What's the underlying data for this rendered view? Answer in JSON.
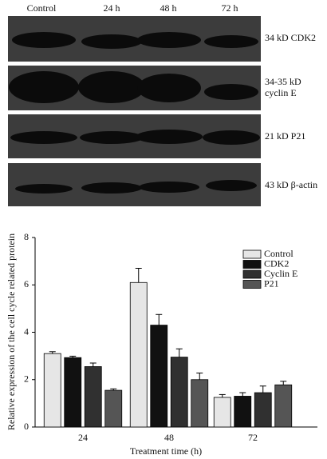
{
  "blot": {
    "lanes": [
      "Control",
      "24 h",
      "48 h",
      "72 h"
    ],
    "bands": [
      [
        "34 kD CDK2"
      ],
      [
        "34-35 kD",
        "cyclin E"
      ],
      [
        "21 kD P21"
      ],
      [
        "43 kD β-actin"
      ]
    ]
  },
  "chart_data": {
    "type": "bar",
    "y_label": "Relative expression of the cell cycle related protein",
    "x_label": "Treatment time (h)",
    "categories": [
      "24",
      "48",
      "72"
    ],
    "series": [
      {
        "name": "Control",
        "color": "#e6e6e6",
        "values": [
          3.1,
          6.1,
          1.25
        ],
        "errors": [
          0.08,
          0.6,
          0.12
        ]
      },
      {
        "name": "CDK2",
        "color": "#111111",
        "values": [
          2.93,
          4.3,
          1.3
        ],
        "errors": [
          0.06,
          0.45,
          0.15
        ]
      },
      {
        "name": "Cyclin E",
        "color": "#303030",
        "values": [
          2.55,
          2.95,
          1.45
        ],
        "errors": [
          0.15,
          0.35,
          0.28
        ]
      },
      {
        "name": "P21",
        "color": "#555555",
        "values": [
          1.55,
          2.0,
          1.78
        ],
        "errors": [
          0.06,
          0.28,
          0.15
        ]
      }
    ],
    "ylim": [
      0,
      8
    ],
    "yticks": [
      0,
      2,
      4,
      6,
      8
    ],
    "grid": false,
    "legend": "upper right"
  }
}
